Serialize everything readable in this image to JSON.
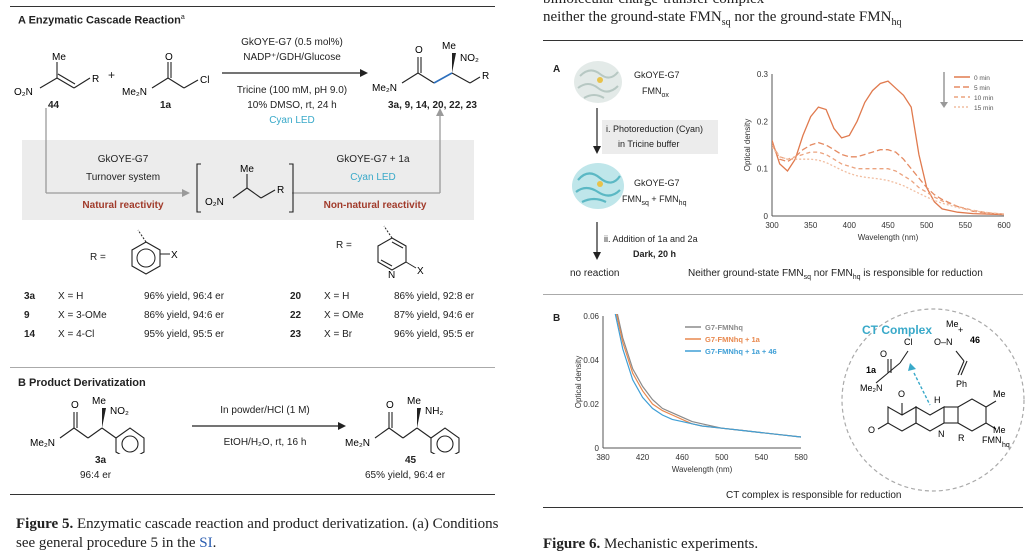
{
  "left": {
    "section_a_title": "A  Enzymatic Cascade Reaction",
    "section_a_sup": "a",
    "substrate1_label": "44",
    "substrate2_label": "1a",
    "plus": "+",
    "cond_line1": "GkOYE-G7 (0.5 mol%)",
    "cond_line2": "NADP⁺/GDH/Glucose",
    "cond_line3": "Tricine (100 mM, pH 9.0)",
    "cond_line4": "10% DMSO, rt, 24 h",
    "cond_line5": "Cyan LED",
    "product_label": "3a, 9, 14, 20, 22, 23",
    "box_left_line1": "GkOYE-G7",
    "box_left_line2": "Turnover system",
    "box_left_red": "Natural reactivity",
    "box_right_line1": "GkOYE-G7 + 1a",
    "box_right_line2": "Cyan LED",
    "box_right_red": "Non-natural reactivity",
    "r_equals": "R =",
    "table_left": [
      {
        "id": "3a",
        "x": "X = H",
        "result": "96% yield, 96:4 er"
      },
      {
        "id": "9",
        "x": "X = 3-OMe",
        "result": "86% yield, 94:6 er"
      },
      {
        "id": "14",
        "x": "X = 4-Cl",
        "result": "95% yield, 95:5 er"
      }
    ],
    "table_right": [
      {
        "id": "20",
        "x": "X = H",
        "result": "86% yield, 92:8 er"
      },
      {
        "id": "22",
        "x": "X = OMe",
        "result": "87% yield, 94:6 er"
      },
      {
        "id": "23",
        "x": "X = Br",
        "result": "96% yield, 95:5 er"
      }
    ],
    "section_b_title": "B  Product Derivatization",
    "deriv_cond1": "In powder/HCl (1 M)",
    "deriv_cond2": "EtOH/H₂O, rt, 16 h",
    "sm_label": "3a",
    "sm_er": "96:4 er",
    "prod_label": "45",
    "prod_result": "65% yield, 96:4 er",
    "caption_bold": "Figure 5.",
    "caption_text": " Enzymatic cascade reaction and product derivatization. (a) Conditions see general procedure 5 in the ",
    "caption_link": "SI",
    "caption_end": "."
  },
  "right": {
    "top_text_line1": "bimolecular charge-transfer complex",
    "top_text_line2": "neither the ground-state FMN",
    "top_sub1": "sq",
    "top_mid": " nor the ground-state FMN",
    "top_sub2": "hq",
    "panel_a": "A",
    "panel_b": "B",
    "enzyme_top_1": "GkOYE-G7",
    "enzyme_top_2": "FMN",
    "enzyme_top_2_sub": "ox",
    "step1_line1": "i. Photoreduction (Cyan)",
    "step1_line2": "in Tricine buffer",
    "enzyme_mid_1": "GkOYE-G7",
    "enzyme_mid_2": "FMN",
    "enzyme_mid_2_sub": "sq",
    "enzyme_mid_3": " + FMN",
    "enzyme_mid_3_sub": "hq",
    "step2_line1": "ii. Addition of 1a and 2a",
    "step2_line2": "Dark, 20 h",
    "no_reaction": "no reaction",
    "conclusion_a": "Neither ground-state FMN",
    "conclusion_a_sub1": "sq",
    "conclusion_a_mid": " nor FMN",
    "conclusion_a_sub2": "hq",
    "conclusion_a_end": " is responsible for reduction",
    "ct_title": "CT Complex",
    "ct_46": "46",
    "ct_1a": "1a",
    "ct_fmn": "FMN",
    "ct_fmn_sub": "hq",
    "conclusion_b": "CT complex is responsible for reduction",
    "caption_bold": "Figure 6.",
    "caption_text": " Mechanistic experiments."
  },
  "chart_data": [
    {
      "type": "line",
      "title": "",
      "xlabel": "Wavelength (nm)",
      "ylabel": "Optical density",
      "xlim": [
        300,
        600
      ],
      "ylim": [
        0,
        0.3
      ],
      "xticks": [
        300,
        350,
        400,
        450,
        500,
        550,
        600
      ],
      "yticks": [
        0,
        0.1,
        0.2,
        0.3
      ],
      "legend_position": "top-right",
      "series": [
        {
          "name": "0 min",
          "color": "#e07a4e",
          "dash": "",
          "x": [
            300,
            310,
            320,
            330,
            340,
            350,
            360,
            370,
            380,
            390,
            400,
            410,
            420,
            430,
            440,
            450,
            460,
            470,
            480,
            490,
            500,
            510,
            520,
            540,
            560,
            580,
            600
          ],
          "y": [
            0.16,
            0.11,
            0.095,
            0.12,
            0.17,
            0.21,
            0.23,
            0.225,
            0.185,
            0.165,
            0.17,
            0.2,
            0.24,
            0.265,
            0.28,
            0.285,
            0.27,
            0.255,
            0.23,
            0.13,
            0.06,
            0.03,
            0.015,
            0.008,
            0.005,
            0.004,
            0.003
          ]
        },
        {
          "name": "5 min",
          "color": "#e58b63",
          "dash": "6,3",
          "x": [
            300,
            310,
            320,
            330,
            340,
            350,
            360,
            370,
            380,
            390,
            400,
            410,
            420,
            430,
            440,
            450,
            460,
            470,
            480,
            490,
            500,
            510,
            520,
            540,
            560,
            580,
            600
          ],
          "y": [
            0.155,
            0.12,
            0.115,
            0.125,
            0.14,
            0.15,
            0.155,
            0.15,
            0.14,
            0.13,
            0.125,
            0.125,
            0.13,
            0.135,
            0.14,
            0.14,
            0.135,
            0.12,
            0.1,
            0.08,
            0.06,
            0.045,
            0.035,
            0.02,
            0.01,
            0.006,
            0.004
          ]
        },
        {
          "name": "10 min",
          "color": "#eba37f",
          "dash": "4,3",
          "x": [
            300,
            310,
            320,
            330,
            340,
            350,
            360,
            370,
            380,
            390,
            400,
            410,
            420,
            430,
            440,
            450,
            460,
            470,
            480,
            490,
            500,
            510,
            520,
            540,
            560,
            580,
            600
          ],
          "y": [
            0.15,
            0.125,
            0.12,
            0.125,
            0.13,
            0.135,
            0.135,
            0.13,
            0.12,
            0.11,
            0.105,
            0.1,
            0.1,
            0.1,
            0.1,
            0.1,
            0.095,
            0.085,
            0.075,
            0.06,
            0.05,
            0.04,
            0.032,
            0.02,
            0.012,
            0.007,
            0.004
          ]
        },
        {
          "name": "15 min",
          "color": "#f1bea1",
          "dash": "2,2",
          "x": [
            300,
            310,
            320,
            330,
            340,
            350,
            360,
            370,
            380,
            390,
            400,
            410,
            420,
            430,
            440,
            450,
            460,
            470,
            480,
            490,
            500,
            510,
            520,
            540,
            560,
            580,
            600
          ],
          "y": [
            0.145,
            0.125,
            0.12,
            0.12,
            0.12,
            0.12,
            0.118,
            0.113,
            0.105,
            0.097,
            0.09,
            0.085,
            0.082,
            0.08,
            0.078,
            0.075,
            0.07,
            0.064,
            0.056,
            0.048,
            0.04,
            0.033,
            0.027,
            0.018,
            0.011,
            0.007,
            0.004
          ]
        }
      ]
    },
    {
      "type": "line",
      "title": "",
      "xlabel": "Wavelength (nm)",
      "ylabel": "Optical density",
      "xlim": [
        380,
        580
      ],
      "ylim": [
        0,
        0.06
      ],
      "xticks": [
        380,
        420,
        460,
        500,
        540,
        580
      ],
      "yticks": [
        0,
        0.02,
        0.04,
        0.06
      ],
      "legend_position": "top-right",
      "series": [
        {
          "name": "G7-FMNhq",
          "color": "#8a8a8a",
          "x": [
            390,
            400,
            410,
            420,
            430,
            440,
            450,
            460,
            470,
            480,
            500,
            520,
            540,
            560,
            580
          ],
          "y": [
            0.07,
            0.05,
            0.036,
            0.028,
            0.022,
            0.018,
            0.016,
            0.014,
            0.012,
            0.011,
            0.009,
            0.008,
            0.007,
            0.006,
            0.005
          ]
        },
        {
          "name": "G7-FMNhq + 1a",
          "color": "#e8894f",
          "x": [
            390,
            400,
            410,
            420,
            430,
            440,
            450,
            460,
            470,
            480,
            500,
            520,
            540,
            560,
            580
          ],
          "y": [
            0.068,
            0.048,
            0.034,
            0.026,
            0.02,
            0.017,
            0.015,
            0.013,
            0.011,
            0.01,
            0.009,
            0.008,
            0.007,
            0.006,
            0.005
          ]
        },
        {
          "name": "G7-FMNhq + 1a + 46",
          "color": "#3f9fd6",
          "x": [
            390,
            400,
            410,
            420,
            430,
            440,
            450,
            460,
            470,
            480,
            500,
            520,
            540,
            560,
            580
          ],
          "y": [
            0.066,
            0.045,
            0.031,
            0.023,
            0.018,
            0.015,
            0.013,
            0.012,
            0.011,
            0.01,
            0.009,
            0.008,
            0.007,
            0.006,
            0.005
          ]
        }
      ]
    }
  ]
}
